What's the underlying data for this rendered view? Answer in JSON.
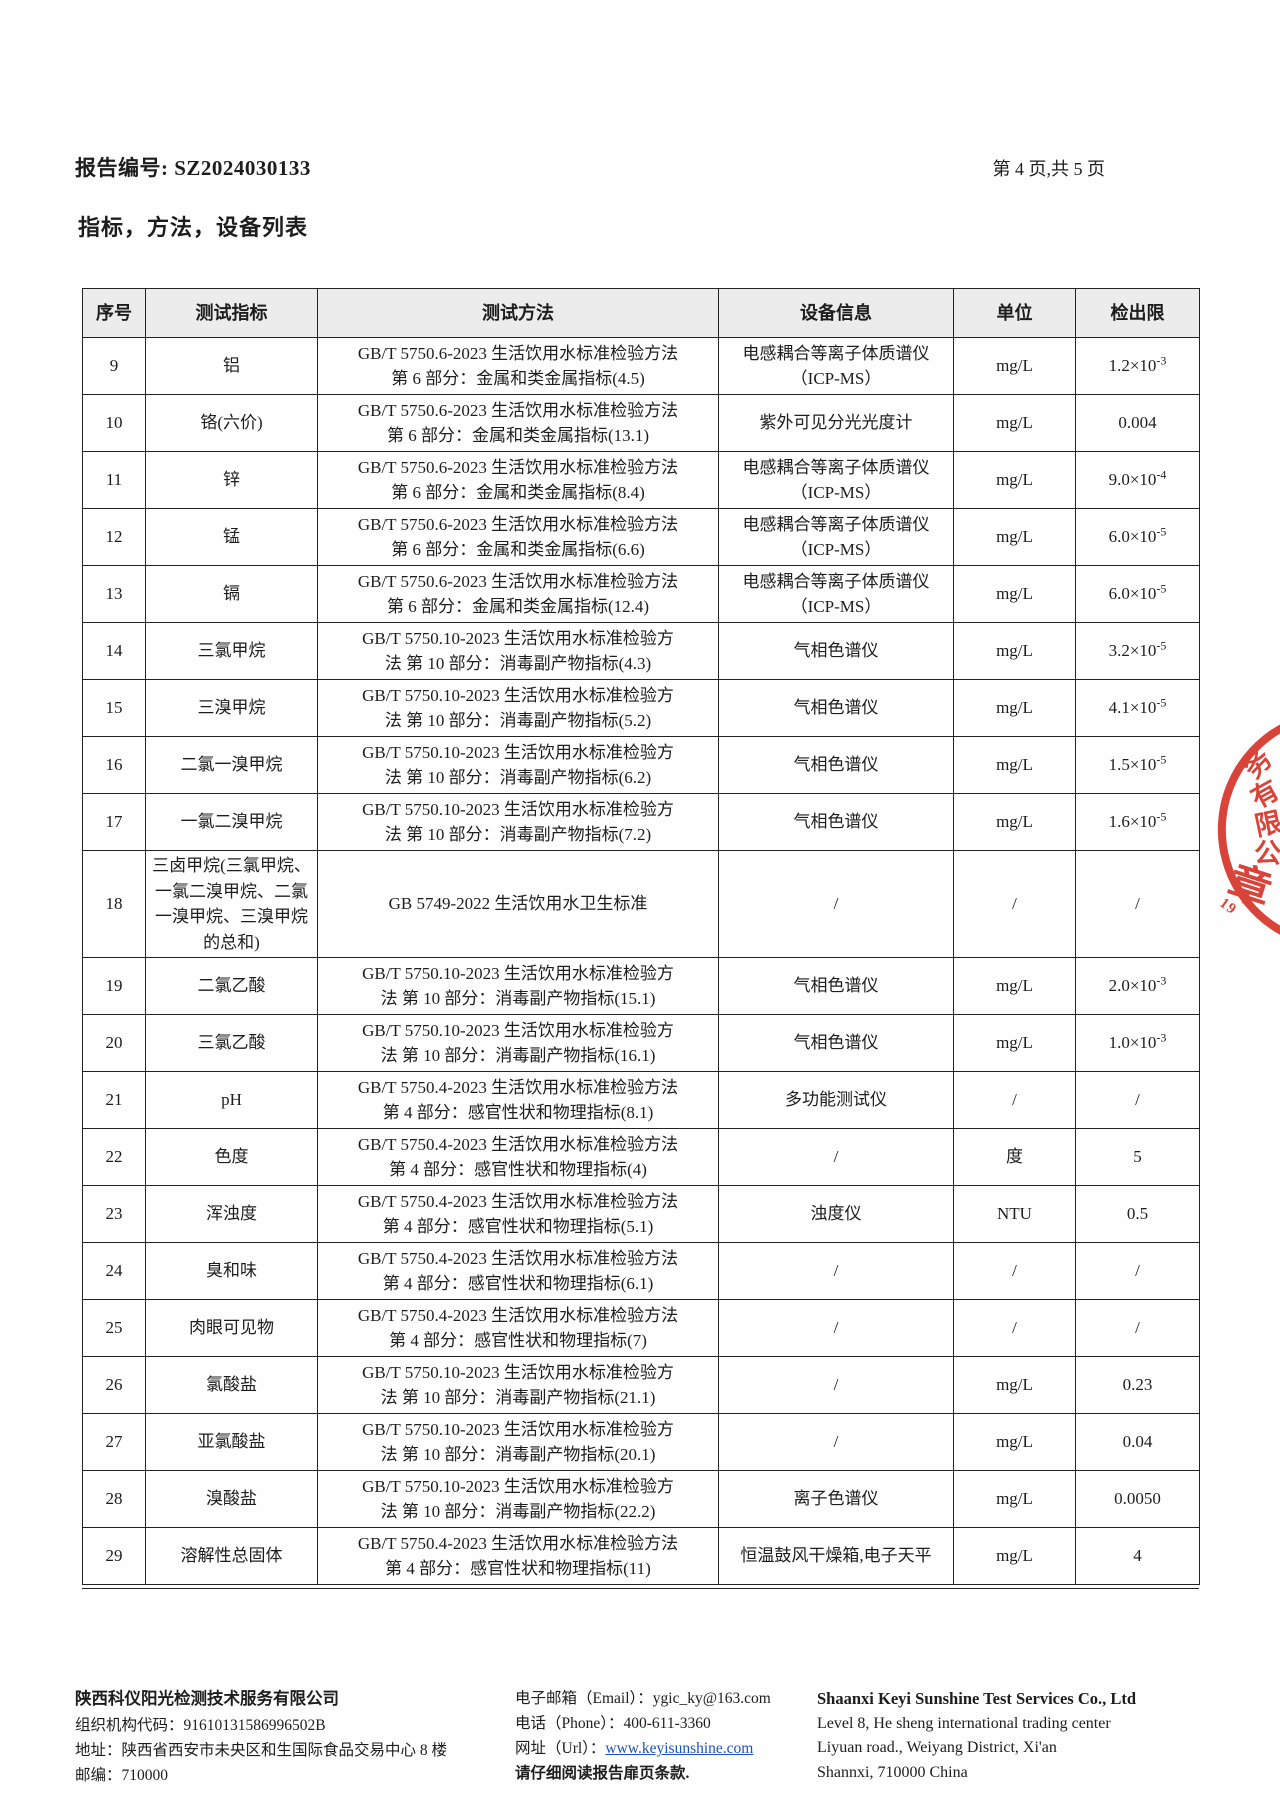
{
  "page": {
    "report_no_label": "报告编号:",
    "report_no": "SZ2024030133",
    "page_info": "第 4 页,共 5 页",
    "section_title": "指标，方法，设备列表"
  },
  "table": {
    "headers": [
      "序号",
      "测试指标",
      "测试方法",
      "设备信息",
      "单位",
      "检出限"
    ],
    "rows": [
      {
        "no": "9",
        "indicator": "铝",
        "method": [
          "GB/T 5750.6-2023 生活饮用水标准检验方法",
          "第 6 部分：金属和类金属指标(4.5)"
        ],
        "equipment": [
          "电感耦合等离子体质谱仪",
          "（ICP-MS）"
        ],
        "unit": "mg/L",
        "limit": "1.2×10^-3"
      },
      {
        "no": "10",
        "indicator": "铬(六价)",
        "method": [
          "GB/T 5750.6-2023 生活饮用水标准检验方法",
          "第 6 部分：金属和类金属指标(13.1)"
        ],
        "equipment": [
          "紫外可见分光光度计"
        ],
        "unit": "mg/L",
        "limit": "0.004"
      },
      {
        "no": "11",
        "indicator": "锌",
        "method": [
          "GB/T 5750.6-2023 生活饮用水标准检验方法",
          "第 6 部分：金属和类金属指标(8.4)"
        ],
        "equipment": [
          "电感耦合等离子体质谱仪",
          "（ICP-MS）"
        ],
        "unit": "mg/L",
        "limit": "9.0×10^-4"
      },
      {
        "no": "12",
        "indicator": "锰",
        "method": [
          "GB/T 5750.6-2023 生活饮用水标准检验方法",
          "第 6 部分：金属和类金属指标(6.6)"
        ],
        "equipment": [
          "电感耦合等离子体质谱仪",
          "（ICP-MS）"
        ],
        "unit": "mg/L",
        "limit": "6.0×10^-5"
      },
      {
        "no": "13",
        "indicator": "镉",
        "method": [
          "GB/T 5750.6-2023 生活饮用水标准检验方法",
          "第 6 部分：金属和类金属指标(12.4)"
        ],
        "equipment": [
          "电感耦合等离子体质谱仪",
          "（ICP-MS）"
        ],
        "unit": "mg/L",
        "limit": "6.0×10^-5"
      },
      {
        "no": "14",
        "indicator": "三氯甲烷",
        "method": [
          "GB/T 5750.10-2023 生活饮用水标准检验方",
          "法 第 10 部分：消毒副产物指标(4.3)"
        ],
        "equipment": [
          "气相色谱仪"
        ],
        "unit": "mg/L",
        "limit": "3.2×10^-5"
      },
      {
        "no": "15",
        "indicator": "三溴甲烷",
        "method": [
          "GB/T 5750.10-2023 生活饮用水标准检验方",
          "法 第 10 部分：消毒副产物指标(5.2)"
        ],
        "equipment": [
          "气相色谱仪"
        ],
        "unit": "mg/L",
        "limit": "4.1×10^-5"
      },
      {
        "no": "16",
        "indicator": "二氯一溴甲烷",
        "method": [
          "GB/T 5750.10-2023 生活饮用水标准检验方",
          "法 第 10 部分：消毒副产物指标(6.2)"
        ],
        "equipment": [
          "气相色谱仪"
        ],
        "unit": "mg/L",
        "limit": "1.5×10^-5"
      },
      {
        "no": "17",
        "indicator": "一氯二溴甲烷",
        "method": [
          "GB/T 5750.10-2023 生活饮用水标准检验方",
          "法 第 10 部分：消毒副产物指标(7.2)"
        ],
        "equipment": [
          "气相色谱仪"
        ],
        "unit": "mg/L",
        "limit": "1.6×10^-5"
      },
      {
        "no": "18",
        "indicator": "三卤甲烷(三氯甲烷、一氯二溴甲烷、二氯一溴甲烷、三溴甲烷的总和)",
        "method": [
          "GB 5749-2022  生活饮用水卫生标准"
        ],
        "equipment": [
          "/"
        ],
        "unit": "/",
        "limit": "/"
      },
      {
        "no": "19",
        "indicator": "二氯乙酸",
        "method": [
          "GB/T 5750.10-2023 生活饮用水标准检验方",
          "法 第 10 部分：消毒副产物指标(15.1)"
        ],
        "equipment": [
          "气相色谱仪"
        ],
        "unit": "mg/L",
        "limit": "2.0×10^-3"
      },
      {
        "no": "20",
        "indicator": "三氯乙酸",
        "method": [
          "GB/T 5750.10-2023 生活饮用水标准检验方",
          "法 第 10 部分：消毒副产物指标(16.1)"
        ],
        "equipment": [
          "气相色谱仪"
        ],
        "unit": "mg/L",
        "limit": "1.0×10^-3"
      },
      {
        "no": "21",
        "indicator": "pH",
        "method": [
          "GB/T 5750.4-2023 生活饮用水标准检验方法",
          "第 4 部分：感官性状和物理指标(8.1)"
        ],
        "equipment": [
          "多功能测试仪"
        ],
        "unit": "/",
        "limit": "/"
      },
      {
        "no": "22",
        "indicator": "色度",
        "method": [
          "GB/T 5750.4-2023 生活饮用水标准检验方法",
          "第 4 部分：感官性状和物理指标(4)"
        ],
        "equipment": [
          "/"
        ],
        "unit": "度",
        "limit": "5"
      },
      {
        "no": "23",
        "indicator": "浑浊度",
        "method": [
          "GB/T 5750.4-2023 生活饮用水标准检验方法",
          "第 4 部分：感官性状和物理指标(5.1)"
        ],
        "equipment": [
          "浊度仪"
        ],
        "unit": "NTU",
        "limit": "0.5"
      },
      {
        "no": "24",
        "indicator": "臭和味",
        "method": [
          "GB/T 5750.4-2023 生活饮用水标准检验方法",
          "第 4 部分：感官性状和物理指标(6.1)"
        ],
        "equipment": [
          "/"
        ],
        "unit": "/",
        "limit": "/"
      },
      {
        "no": "25",
        "indicator": "肉眼可见物",
        "method": [
          "GB/T 5750.4-2023 生活饮用水标准检验方法",
          "第 4 部分：感官性状和物理指标(7)"
        ],
        "equipment": [
          "/"
        ],
        "unit": "/",
        "limit": "/"
      },
      {
        "no": "26",
        "indicator": "氯酸盐",
        "method": [
          "GB/T 5750.10-2023 生活饮用水标准检验方",
          "法 第 10 部分：消毒副产物指标(21.1)"
        ],
        "equipment": [
          "/"
        ],
        "unit": "mg/L",
        "limit": "0.23"
      },
      {
        "no": "27",
        "indicator": "亚氯酸盐",
        "method": [
          "GB/T 5750.10-2023 生活饮用水标准检验方",
          "法 第 10 部分：消毒副产物指标(20.1)"
        ],
        "equipment": [
          "/"
        ],
        "unit": "mg/L",
        "limit": "0.04"
      },
      {
        "no": "28",
        "indicator": "溴酸盐",
        "method": [
          "GB/T 5750.10-2023 生活饮用水标准检验方",
          "法 第 10 部分：消毒副产物指标(22.2)"
        ],
        "equipment": [
          "离子色谱仪"
        ],
        "unit": "mg/L",
        "limit": "0.0050"
      },
      {
        "no": "29",
        "indicator": "溶解性总固体",
        "method": [
          "GB/T 5750.4-2023 生活饮用水标准检验方法",
          "第 4 部分：感官性状和物理指标(11)"
        ],
        "equipment": [
          "恒温鼓风干燥箱,电子天平"
        ],
        "unit": "mg/L",
        "limit": "4"
      }
    ]
  },
  "stamp": {
    "color": "#d6372b",
    "arc_chars": [
      "务",
      "有",
      "限",
      "公"
    ],
    "seal_char": "章",
    "number": "19"
  },
  "footer": {
    "cn": {
      "company": "陕西科仪阳光检测技术服务有限公司",
      "org_code": "组织机构代码：91610131586996502B",
      "address": "地址：陕西省西安市未央区和生国际食品交易中心 8 楼",
      "zip": "邮编：710000"
    },
    "contact": {
      "email": "电子邮箱（Email）：ygic_ky@163.com",
      "phone": "电话（Phone）：400-611-3360",
      "url_label": "网址（Url）：",
      "url": "www.keyisunshine.com",
      "notice": "请仔细阅读报告扉页条款."
    },
    "en": {
      "company": "Shaanxi Keyi Sunshine Test Services Co., Ltd",
      "line1": "Level 8, He sheng international trading center",
      "line2": "Liyuan road., Weiyang District, Xi'an",
      "line3": "Shannxi, 710000 China"
    }
  }
}
